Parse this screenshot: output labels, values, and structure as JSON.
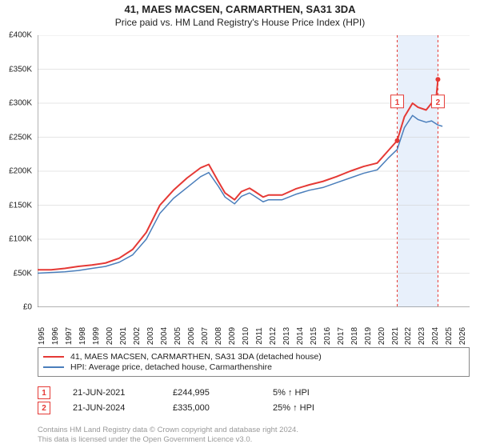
{
  "title": "41, MAES MACSEN, CARMARTHEN, SA31 3DA",
  "subtitle": "Price paid vs. HM Land Registry's House Price Index (HPI)",
  "chart": {
    "type": "line",
    "background_color": "#ffffff",
    "grid_color": "#cccccc",
    "axis_color": "#666666",
    "x_range": [
      1995,
      2026.8
    ],
    "x_ticks": [
      1995,
      1996,
      1997,
      1998,
      1999,
      2000,
      2001,
      2002,
      2003,
      2004,
      2005,
      2006,
      2007,
      2008,
      2009,
      2010,
      2011,
      2012,
      2013,
      2014,
      2015,
      2016,
      2017,
      2018,
      2019,
      2020,
      2021,
      2022,
      2023,
      2024,
      2025,
      2026
    ],
    "y_range": [
      0,
      400000
    ],
    "y_ticks": [
      0,
      50000,
      100000,
      150000,
      200000,
      250000,
      300000,
      350000,
      400000
    ],
    "y_tick_labels": [
      "£0",
      "£50K",
      "£100K",
      "£150K",
      "£200K",
      "£250K",
      "£300K",
      "£350K",
      "£400K"
    ],
    "label_fontsize": 10,
    "shaded_band": {
      "from": 2021.5,
      "to": 2024.5,
      "color": "#e8f0fb"
    },
    "vlines": [
      {
        "x": 2021.47,
        "color": "#e53935",
        "dash": "3,3"
      },
      {
        "x": 2024.47,
        "color": "#e53935",
        "dash": "3,3"
      }
    ],
    "markers": [
      {
        "id": "1",
        "x": 2021.47,
        "y": 244995,
        "box_color": "#e53935",
        "text_color": "#e53935",
        "label_y_top": 88000
      },
      {
        "id": "2",
        "x": 2024.47,
        "y": 335000,
        "box_color": "#e53935",
        "text_color": "#e53935",
        "label_y_top": 88000
      }
    ],
    "series": [
      {
        "name": "price_paid",
        "label": "41, MAES MACSEN, CARMARTHEN, SA31 3DA (detached house)",
        "color": "#e53935",
        "width": 2,
        "points": [
          [
            1995,
            55000
          ],
          [
            1996,
            55000
          ],
          [
            1997,
            57000
          ],
          [
            1998,
            60000
          ],
          [
            1999,
            62000
          ],
          [
            2000,
            65000
          ],
          [
            2001,
            72000
          ],
          [
            2002,
            85000
          ],
          [
            2003,
            110000
          ],
          [
            2004,
            150000
          ],
          [
            2005,
            172000
          ],
          [
            2006,
            190000
          ],
          [
            2007,
            205000
          ],
          [
            2007.6,
            210000
          ],
          [
            2008.3,
            185000
          ],
          [
            2008.8,
            168000
          ],
          [
            2009.5,
            158000
          ],
          [
            2010,
            170000
          ],
          [
            2010.6,
            175000
          ],
          [
            2011,
            170000
          ],
          [
            2011.6,
            162000
          ],
          [
            2012,
            165000
          ],
          [
            2013,
            165000
          ],
          [
            2014,
            174000
          ],
          [
            2015,
            180000
          ],
          [
            2016,
            185000
          ],
          [
            2017,
            192000
          ],
          [
            2018,
            200000
          ],
          [
            2019,
            207000
          ],
          [
            2020,
            212000
          ],
          [
            2020.8,
            230000
          ],
          [
            2021.47,
            244995
          ],
          [
            2022,
            280000
          ],
          [
            2022.6,
            300000
          ],
          [
            2023,
            294000
          ],
          [
            2023.6,
            290000
          ],
          [
            2024,
            300000
          ],
          [
            2024.35,
            310000
          ],
          [
            2024.47,
            335000
          ]
        ]
      },
      {
        "name": "hpi",
        "label": "HPI: Average price, detached house, Carmarthenshire",
        "color": "#4a7ebb",
        "width": 1.5,
        "points": [
          [
            1995,
            50000
          ],
          [
            1996,
            51000
          ],
          [
            1997,
            52000
          ],
          [
            1998,
            54000
          ],
          [
            1999,
            57000
          ],
          [
            2000,
            60000
          ],
          [
            2001,
            66000
          ],
          [
            2002,
            77000
          ],
          [
            2003,
            100000
          ],
          [
            2004,
            138000
          ],
          [
            2005,
            160000
          ],
          [
            2006,
            176000
          ],
          [
            2007,
            192000
          ],
          [
            2007.6,
            198000
          ],
          [
            2008.3,
            178000
          ],
          [
            2008.8,
            162000
          ],
          [
            2009.5,
            152000
          ],
          [
            2010,
            163000
          ],
          [
            2010.6,
            168000
          ],
          [
            2011,
            163000
          ],
          [
            2011.6,
            155000
          ],
          [
            2012,
            158000
          ],
          [
            2013,
            158000
          ],
          [
            2014,
            166000
          ],
          [
            2015,
            172000
          ],
          [
            2016,
            176000
          ],
          [
            2017,
            183000
          ],
          [
            2018,
            190000
          ],
          [
            2019,
            197000
          ],
          [
            2020,
            202000
          ],
          [
            2020.8,
            219000
          ],
          [
            2021.47,
            232000
          ],
          [
            2022,
            264000
          ],
          [
            2022.6,
            282000
          ],
          [
            2023,
            276000
          ],
          [
            2023.6,
            272000
          ],
          [
            2024,
            274000
          ],
          [
            2024.47,
            268000
          ],
          [
            2024.8,
            266000
          ]
        ]
      }
    ]
  },
  "legend": {
    "items": [
      {
        "color": "#e53935",
        "label": "41, MAES MACSEN, CARMARTHEN, SA31 3DA (detached house)"
      },
      {
        "color": "#4a7ebb",
        "label": "HPI: Average price, detached house, Carmarthenshire"
      }
    ]
  },
  "data_points": [
    {
      "marker": "1",
      "marker_color": "#e53935",
      "date": "21-JUN-2021",
      "price": "£244,995",
      "pct": "5% ↑ HPI"
    },
    {
      "marker": "2",
      "marker_color": "#e53935",
      "date": "21-JUN-2024",
      "price": "£335,000",
      "pct": "25% ↑ HPI"
    }
  ],
  "footnote_line1": "Contains HM Land Registry data © Crown copyright and database right 2024.",
  "footnote_line2": "This data is licensed under the Open Government Licence v3.0."
}
